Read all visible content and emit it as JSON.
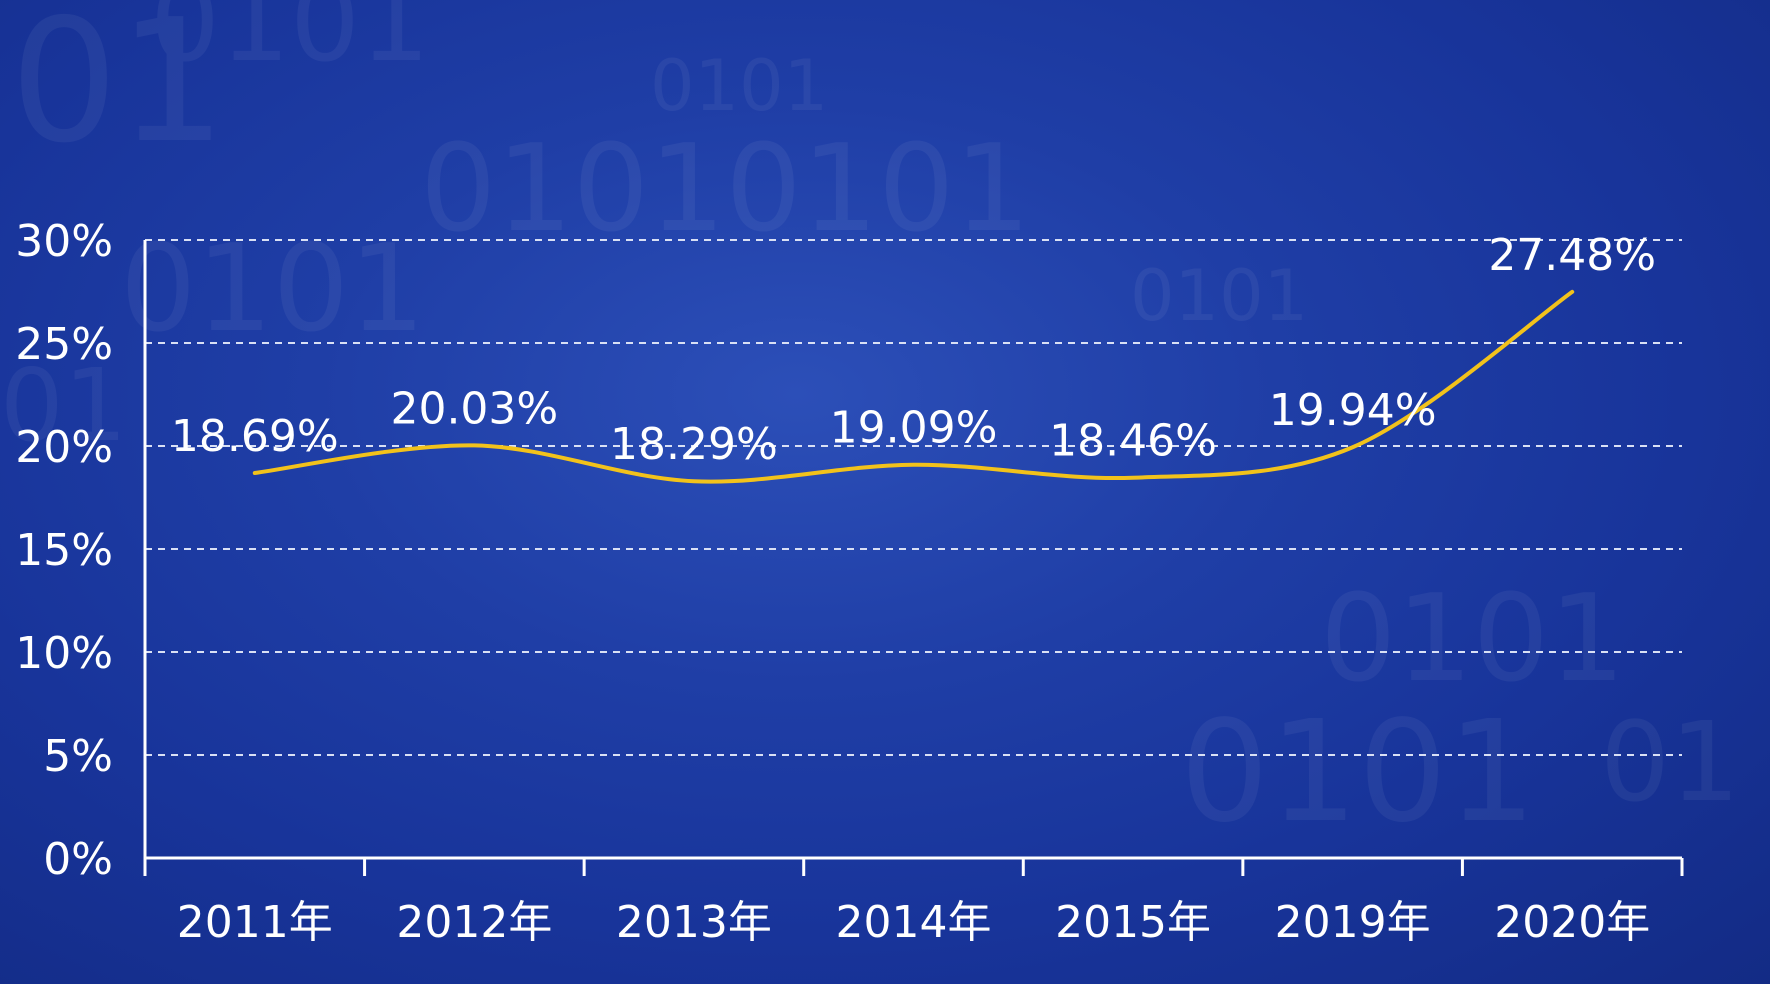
{
  "chart_data": {
    "type": "line",
    "title": "",
    "xlabel": "",
    "ylabel": "",
    "categories": [
      "2011年",
      "2012年",
      "2013年",
      "2014年",
      "2015年",
      "2019年",
      "2020年"
    ],
    "series": [
      {
        "values": [
          18.69,
          20.03,
          18.29,
          19.09,
          18.46,
          19.94,
          27.48
        ],
        "labels": [
          "18.69%",
          "20.03%",
          "18.29%",
          "19.09%",
          "18.46%",
          "19.94%",
          "27.48%"
        ],
        "color": "#f2c21b"
      }
    ],
    "ylim": [
      0,
      30
    ],
    "yticks": [
      0,
      5,
      10,
      15,
      20,
      25,
      30
    ],
    "ytick_labels": [
      "0%",
      "5%",
      "10%",
      "15%",
      "20%",
      "25%",
      "30%"
    ],
    "grid": true,
    "smooth": true,
    "legend": "none"
  },
  "colors": {
    "background": "#1f3ea6",
    "axis": "#ffffff",
    "gridline": "#d9e0f5",
    "line": "#f2c21b"
  }
}
